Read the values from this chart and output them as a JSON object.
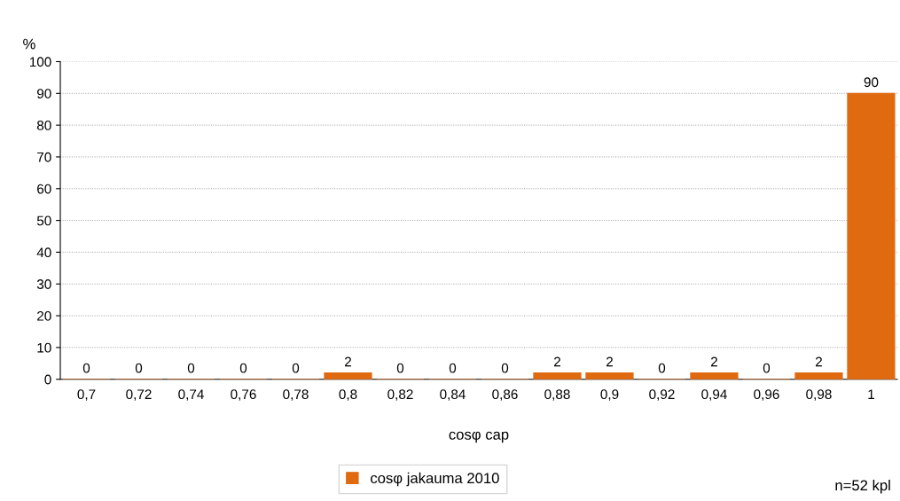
{
  "chart_data": {
    "type": "bar",
    "ylabel": "%",
    "xlabel": "cosφ cap",
    "categories": [
      "0,7",
      "0,72",
      "0,74",
      "0,76",
      "0,78",
      "0,8",
      "0,82",
      "0,84",
      "0,86",
      "0,88",
      "0,9",
      "0,92",
      "0,94",
      "0,96",
      "0,98",
      "1"
    ],
    "series": [
      {
        "name": "cosφ jakauma 2010",
        "color": "#e06a10",
        "values": [
          0,
          0,
          0,
          0,
          0,
          2,
          0,
          0,
          0,
          2,
          2,
          0,
          2,
          0,
          2,
          90
        ]
      }
    ],
    "ylim": [
      0,
      100
    ],
    "yticks": [
      0,
      10,
      20,
      30,
      40,
      50,
      60,
      70,
      80,
      90,
      100
    ],
    "grid": "y",
    "legend": "bottom",
    "data_labels": true,
    "annotations": [
      "n=52 kpl"
    ]
  }
}
